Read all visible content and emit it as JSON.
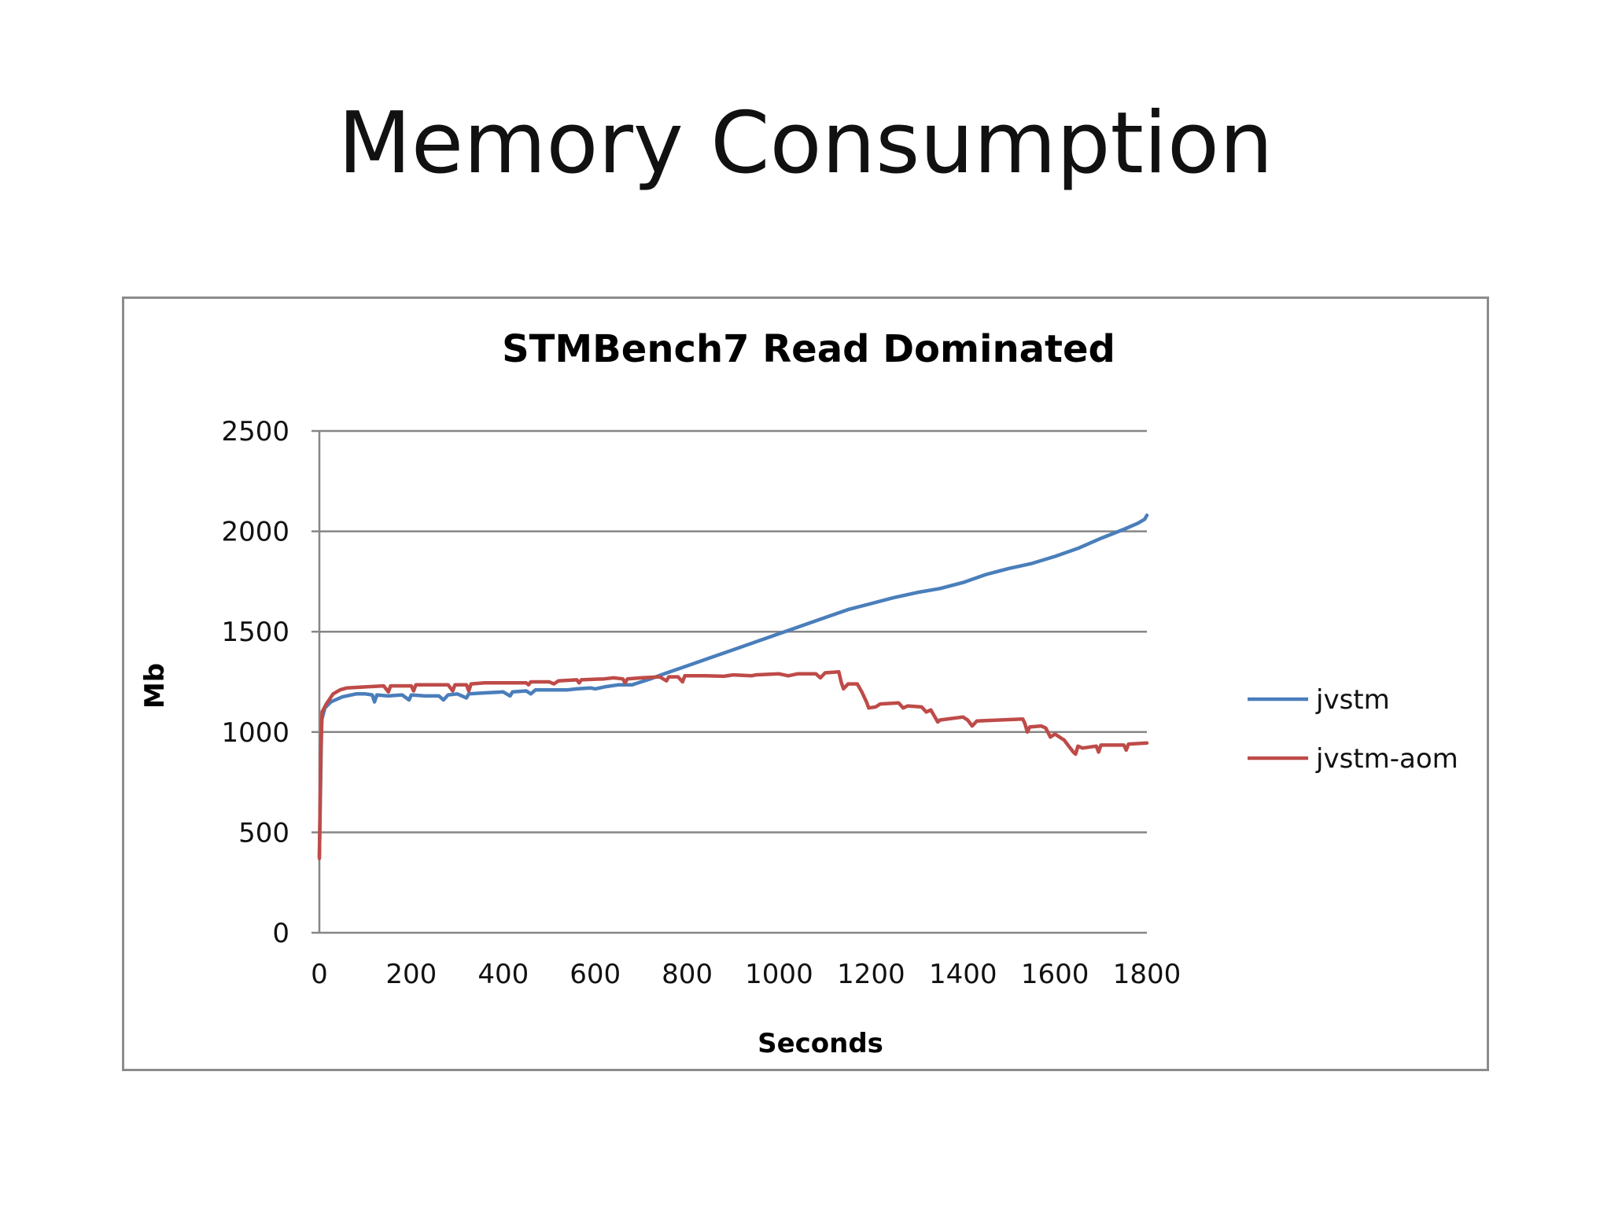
{
  "slide": {
    "title": "Memory Consumption"
  },
  "colors": {
    "jvstm": "#4a7ebb",
    "jvstm_aom": "#be4b48",
    "grid": "#868686",
    "axis": "#868686"
  },
  "chart_data": {
    "type": "line",
    "title": "STMBench7 Read Dominated",
    "xlabel": "Seconds",
    "ylabel": "Mb",
    "xlim": [
      0,
      1800
    ],
    "ylim": [
      0,
      2500
    ],
    "xticks": [
      0,
      200,
      400,
      600,
      800,
      1000,
      1200,
      1400,
      1600,
      1800
    ],
    "yticks": [
      0,
      500,
      1000,
      1500,
      2000,
      2500
    ],
    "grid": "horizontal",
    "legend": "right",
    "series": [
      {
        "name": "jvstm",
        "color": "#4a7ebb",
        "points": [
          [
            0,
            380
          ],
          [
            5,
            1060
          ],
          [
            12,
            1120
          ],
          [
            25,
            1150
          ],
          [
            50,
            1175
          ],
          [
            80,
            1190
          ],
          [
            100,
            1190
          ],
          [
            115,
            1185
          ],
          [
            120,
            1150
          ],
          [
            125,
            1185
          ],
          [
            150,
            1180
          ],
          [
            180,
            1185
          ],
          [
            195,
            1160
          ],
          [
            200,
            1185
          ],
          [
            230,
            1180
          ],
          [
            260,
            1180
          ],
          [
            270,
            1160
          ],
          [
            280,
            1185
          ],
          [
            300,
            1190
          ],
          [
            320,
            1170
          ],
          [
            325,
            1190
          ],
          [
            360,
            1195
          ],
          [
            400,
            1200
          ],
          [
            415,
            1180
          ],
          [
            420,
            1200
          ],
          [
            450,
            1205
          ],
          [
            460,
            1190
          ],
          [
            470,
            1210
          ],
          [
            500,
            1210
          ],
          [
            540,
            1210
          ],
          [
            560,
            1215
          ],
          [
            590,
            1220
          ],
          [
            600,
            1215
          ],
          [
            620,
            1225
          ],
          [
            650,
            1235
          ],
          [
            680,
            1235
          ],
          [
            700,
            1250
          ],
          [
            720,
            1265
          ],
          [
            750,
            1290
          ],
          [
            800,
            1330
          ],
          [
            850,
            1370
          ],
          [
            900,
            1410
          ],
          [
            950,
            1450
          ],
          [
            1000,
            1490
          ],
          [
            1050,
            1530
          ],
          [
            1100,
            1570
          ],
          [
            1150,
            1610
          ],
          [
            1200,
            1640
          ],
          [
            1250,
            1670
          ],
          [
            1300,
            1695
          ],
          [
            1350,
            1715
          ],
          [
            1400,
            1745
          ],
          [
            1450,
            1785
          ],
          [
            1500,
            1815
          ],
          [
            1550,
            1840
          ],
          [
            1600,
            1875
          ],
          [
            1650,
            1915
          ],
          [
            1700,
            1965
          ],
          [
            1750,
            2010
          ],
          [
            1780,
            2040
          ],
          [
            1795,
            2060
          ],
          [
            1800,
            2080
          ]
        ]
      },
      {
        "name": "jvstm-aom",
        "color": "#be4b48",
        "points": [
          [
            0,
            370
          ],
          [
            3,
            900
          ],
          [
            6,
            1100
          ],
          [
            15,
            1140
          ],
          [
            30,
            1190
          ],
          [
            45,
            1210
          ],
          [
            60,
            1220
          ],
          [
            100,
            1225
          ],
          [
            140,
            1230
          ],
          [
            150,
            1200
          ],
          [
            155,
            1230
          ],
          [
            200,
            1230
          ],
          [
            205,
            1205
          ],
          [
            210,
            1235
          ],
          [
            260,
            1235
          ],
          [
            280,
            1235
          ],
          [
            290,
            1205
          ],
          [
            295,
            1235
          ],
          [
            320,
            1235
          ],
          [
            325,
            1205
          ],
          [
            330,
            1240
          ],
          [
            360,
            1245
          ],
          [
            400,
            1245
          ],
          [
            450,
            1245
          ],
          [
            455,
            1235
          ],
          [
            460,
            1250
          ],
          [
            500,
            1250
          ],
          [
            510,
            1240
          ],
          [
            520,
            1255
          ],
          [
            560,
            1260
          ],
          [
            565,
            1245
          ],
          [
            570,
            1260
          ],
          [
            620,
            1265
          ],
          [
            640,
            1270
          ],
          [
            660,
            1265
          ],
          [
            665,
            1245
          ],
          [
            670,
            1265
          ],
          [
            700,
            1270
          ],
          [
            740,
            1275
          ],
          [
            755,
            1255
          ],
          [
            760,
            1275
          ],
          [
            780,
            1275
          ],
          [
            790,
            1250
          ],
          [
            795,
            1280
          ],
          [
            840,
            1280
          ],
          [
            880,
            1278
          ],
          [
            900,
            1285
          ],
          [
            940,
            1280
          ],
          [
            950,
            1285
          ],
          [
            1000,
            1290
          ],
          [
            1020,
            1280
          ],
          [
            1040,
            1290
          ],
          [
            1080,
            1290
          ],
          [
            1090,
            1270
          ],
          [
            1100,
            1295
          ],
          [
            1130,
            1300
          ],
          [
            1135,
            1250
          ],
          [
            1140,
            1215
          ],
          [
            1150,
            1240
          ],
          [
            1170,
            1240
          ],
          [
            1180,
            1200
          ],
          [
            1190,
            1150
          ],
          [
            1195,
            1120
          ],
          [
            1210,
            1125
          ],
          [
            1220,
            1140
          ],
          [
            1260,
            1145
          ],
          [
            1270,
            1120
          ],
          [
            1280,
            1130
          ],
          [
            1310,
            1125
          ],
          [
            1320,
            1100
          ],
          [
            1330,
            1110
          ],
          [
            1340,
            1070
          ],
          [
            1345,
            1050
          ],
          [
            1350,
            1060
          ],
          [
            1400,
            1075
          ],
          [
            1410,
            1060
          ],
          [
            1420,
            1030
          ],
          [
            1430,
            1055
          ],
          [
            1480,
            1060
          ],
          [
            1530,
            1065
          ],
          [
            1535,
            1040
          ],
          [
            1540,
            1000
          ],
          [
            1545,
            1025
          ],
          [
            1570,
            1030
          ],
          [
            1580,
            1020
          ],
          [
            1590,
            975
          ],
          [
            1600,
            990
          ],
          [
            1620,
            960
          ],
          [
            1630,
            930
          ],
          [
            1640,
            900
          ],
          [
            1645,
            890
          ],
          [
            1650,
            930
          ],
          [
            1660,
            920
          ],
          [
            1690,
            930
          ],
          [
            1695,
            900
          ],
          [
            1700,
            935
          ],
          [
            1750,
            935
          ],
          [
            1755,
            910
          ],
          [
            1760,
            940
          ],
          [
            1800,
            945
          ]
        ]
      }
    ]
  }
}
